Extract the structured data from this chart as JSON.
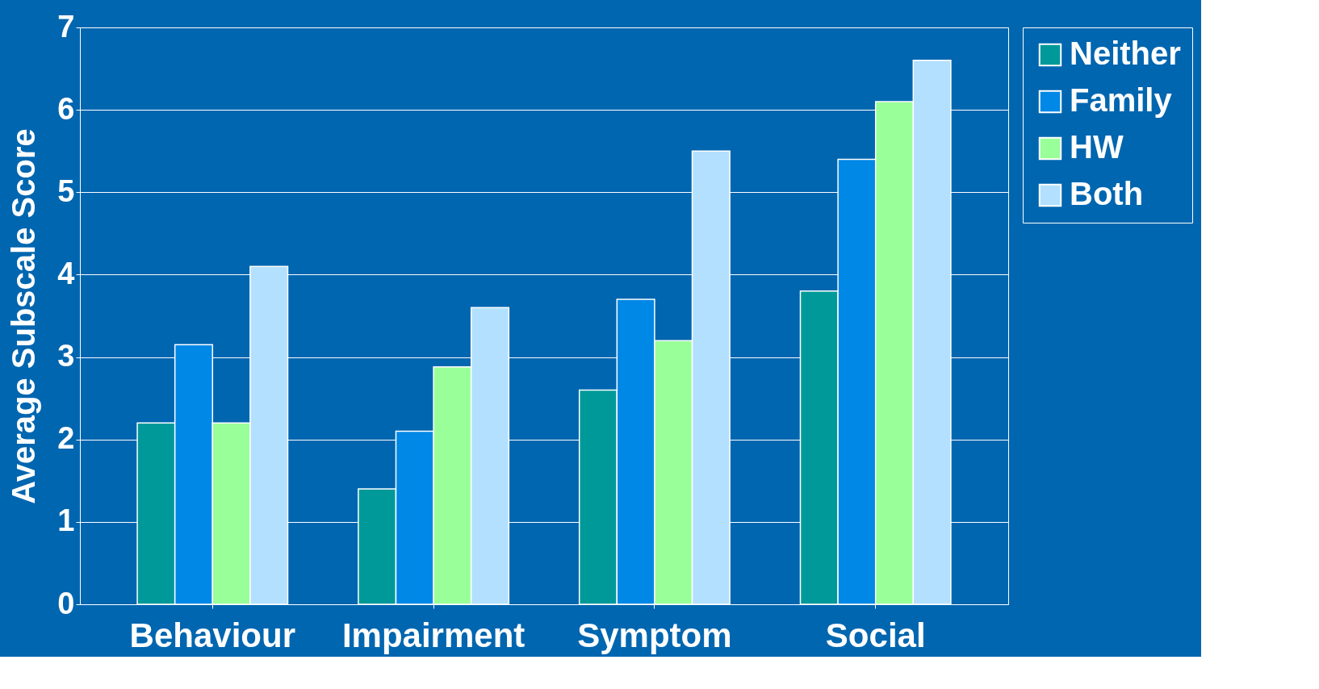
{
  "chart_data": {
    "type": "bar",
    "ylabel": "Average Subscale Score",
    "categories": [
      "Behaviour",
      "Impairment",
      "Symptom",
      "Social"
    ],
    "series": [
      {
        "name": "Neither",
        "color": "#009999",
        "values": [
          2.2,
          1.4,
          2.6,
          3.8
        ]
      },
      {
        "name": "Family",
        "color": "#0088e6",
        "values": [
          3.15,
          2.1,
          3.7,
          5.4
        ]
      },
      {
        "name": "HW",
        "color": "#99ff99",
        "values": [
          2.2,
          2.88,
          3.2,
          6.1
        ]
      },
      {
        "name": "Both",
        "color": "#b3e0ff",
        "values": [
          4.1,
          3.6,
          5.5,
          6.6
        ]
      }
    ],
    "ylim": [
      0,
      7
    ],
    "yticks": [
      0,
      1,
      2,
      3,
      4,
      5,
      6,
      7
    ],
    "grid": "y",
    "legend": "right"
  }
}
